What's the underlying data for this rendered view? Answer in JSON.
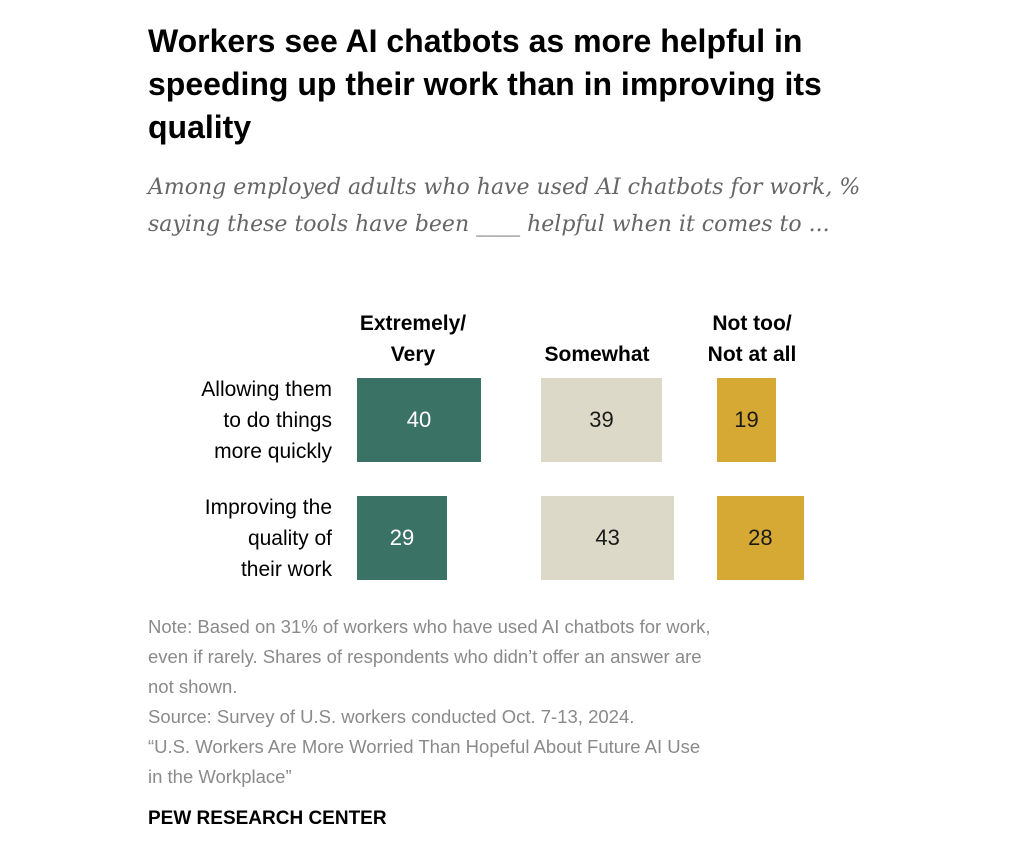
{
  "chart_data": {
    "type": "bar",
    "orientation": "horizontal-stacked-columns",
    "title": "Workers see AI chatbots as more helpful in speeding up their work than in improving its quality",
    "subtitle": "Among employed adults who have used AI chatbots for work, % saying these tools have been ____ helpful when it comes to ...",
    "categories": [
      "Allowing them to do things more quickly",
      "Improving the quality of their work"
    ],
    "series": [
      {
        "name": "Extremely/ Very",
        "values": [
          40,
          29
        ],
        "color": "#3a7366",
        "text_color": "#ffffff"
      },
      {
        "name": "Somewhat",
        "values": [
          39,
          43
        ],
        "color": "#dcd9c8",
        "text_color": "#1a1a1a"
      },
      {
        "name": "Not too/ Not at all",
        "values": [
          19,
          28
        ],
        "color": "#d6a935",
        "text_color": "#1a1a1a"
      }
    ],
    "column_headers": [
      [
        "Extremely/",
        "Very"
      ],
      [
        "Somewhat"
      ],
      [
        "Not too/",
        "Not at all"
      ]
    ],
    "row_labels": [
      [
        "Allowing them",
        "to do things",
        "more quickly"
      ],
      [
        "Improving the",
        "quality of",
        "their work"
      ]
    ]
  },
  "notes": [
    "Note: Based on 31% of workers who have used AI chatbots for work,",
    "even if rarely. Shares of respondents who didn’t offer an answer are",
    "not shown.",
    "Source: Survey of U.S. workers conducted Oct. 7-13, 2024.",
    "“U.S. Workers Are More Worried Than Hopeful About Future AI Use",
    "in the Workplace”"
  ],
  "brand": "PEW RESEARCH CENTER"
}
